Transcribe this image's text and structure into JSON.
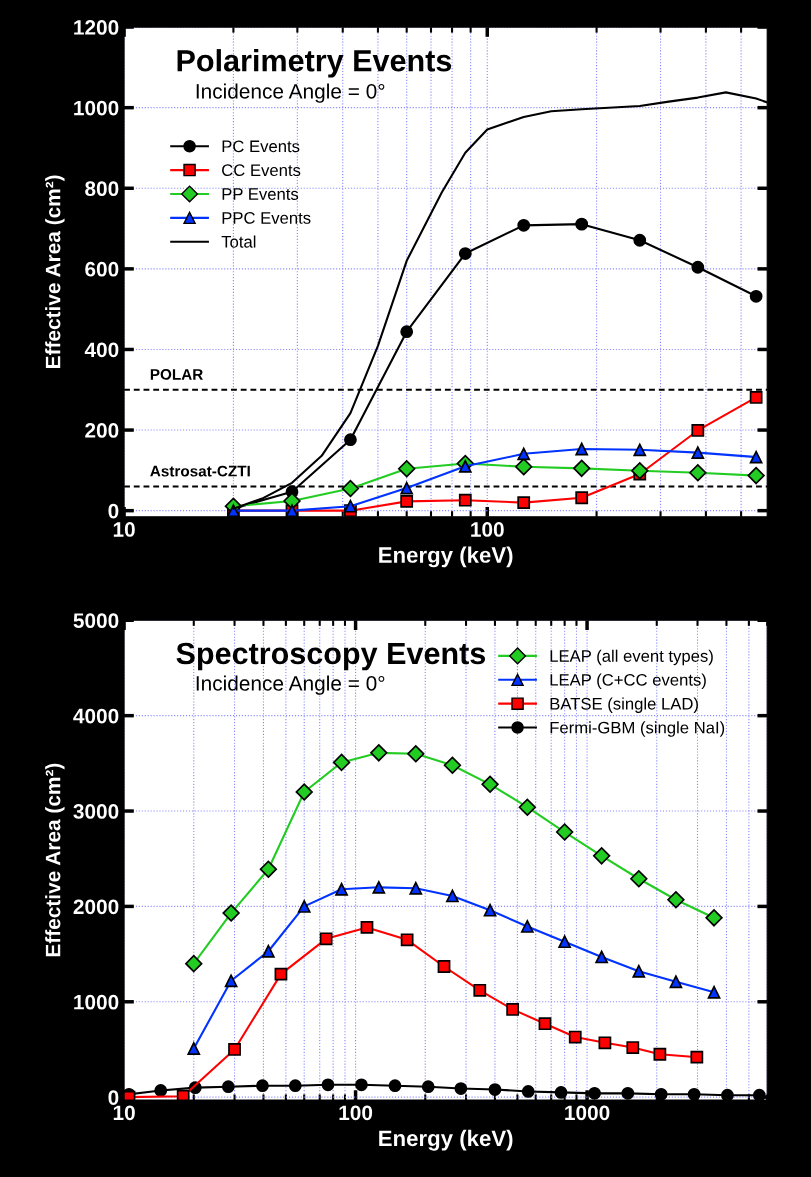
{
  "chart_data": [
    {
      "type": "line",
      "title": "Polarimetry Events",
      "subtitle": "Incidence Angle = 0°",
      "xlabel": "Energy (keV)",
      "ylabel": "Effective Area (cm²)",
      "log": "x",
      "xlim": [
        10,
        590
      ],
      "xticks": [
        10,
        100
      ],
      "ylim": [
        -15,
        1200
      ],
      "yticks": [
        0,
        200,
        400,
        600,
        800,
        1000,
        1200
      ],
      "grid": true,
      "legend": "top left",
      "series": [
        {
          "name": "PC Events",
          "color": "#000000",
          "marker": "circle",
          "x": [
            20,
            29,
            42,
            60,
            87,
            126,
            182,
            263,
            380,
            550
          ],
          "values": [
            5,
            47,
            176,
            444,
            638,
            708,
            711,
            671,
            604,
            532
          ]
        },
        {
          "name": "CC Events",
          "color": "#ff0000",
          "marker": "square",
          "x": [
            20,
            29,
            42,
            60,
            87,
            126,
            182,
            263,
            380,
            550
          ],
          "values": [
            0,
            0,
            0,
            23,
            26,
            20,
            32,
            91,
            199,
            281
          ]
        },
        {
          "name": "PP Events",
          "color": "#22cc22",
          "marker": "diamond",
          "x": [
            20,
            29,
            42,
            60,
            87,
            126,
            182,
            263,
            380,
            550
          ],
          "values": [
            11,
            24,
            55,
            104,
            117,
            109,
            105,
            99,
            94,
            87
          ]
        },
        {
          "name": "PPC Events",
          "color": "#0033ff",
          "marker": "triangle",
          "x": [
            20,
            29,
            42,
            60,
            87,
            126,
            182,
            263,
            380,
            550
          ],
          "values": [
            0,
            0,
            11,
            56,
            110,
            141,
            153,
            151,
            144,
            133
          ]
        },
        {
          "name": "Total",
          "color": "#000000",
          "marker": "none",
          "x": [
            20,
            24,
            29,
            35,
            42,
            50,
            60,
            75,
            87,
            100,
            126,
            150,
            182,
            263,
            316,
            380,
            454,
            550,
            590
          ],
          "values": [
            5,
            30,
            69,
            136,
            242,
            409,
            620,
            790,
            888,
            946,
            977,
            991,
            996,
            1004,
            1015,
            1025,
            1038,
            1023,
            1013
          ]
        }
      ],
      "ref_lines": [
        {
          "axis": "y",
          "value": 300,
          "label": "POLAR",
          "line_style": "dashed",
          "color": "#000000"
        },
        {
          "axis": "y",
          "value": 60,
          "label": "Astrosat-CZTI",
          "line_style": "dashed",
          "color": "#000000"
        }
      ]
    },
    {
      "type": "line",
      "title": "Spectroscopy Events",
      "subtitle": "Incidence Angle = 0°",
      "xlabel": "Energy (keV)",
      "ylabel": "Effective Area (cm²)",
      "log": "x",
      "xlim": [
        10,
        6000
      ],
      "xticks": [
        10,
        100,
        1000
      ],
      "ylim": [
        -30,
        5000
      ],
      "yticks": [
        0,
        1000,
        2000,
        3000,
        4000,
        5000
      ],
      "grid": true,
      "legend": "top right",
      "series": [
        {
          "name": "LEAP (all event types)",
          "color": "#22cc22",
          "marker": "diamond",
          "x": [
            20,
            29,
            42,
            60,
            87,
            126,
            182,
            262,
            381,
            552,
            800,
            1156,
            1673,
            2420,
            3536
          ],
          "values": [
            1400,
            1930,
            2390,
            3200,
            3510,
            3610,
            3600,
            3480,
            3280,
            3040,
            2780,
            2530,
            2290,
            2070,
            1880
          ]
        },
        {
          "name": "LEAP (C+CC events)",
          "color": "#0033ff",
          "marker": "triangle",
          "x": [
            20,
            29,
            42,
            60,
            87,
            126,
            182,
            262,
            381,
            552,
            800,
            1156,
            1673,
            2420,
            3536
          ],
          "values": [
            510,
            1220,
            1530,
            2000,
            2180,
            2200,
            2190,
            2110,
            1960,
            1790,
            1630,
            1470,
            1320,
            1210,
            1100
          ]
        },
        {
          "name": "BATSE (single LAD)",
          "color": "#ff0000",
          "marker": "square",
          "x": [
            10.5,
            18,
            30,
            47.6,
            74.6,
            112,
            167,
            241,
            344,
            477,
            658,
            889,
            1194,
            1576,
            2063,
            2980
          ],
          "values": [
            0,
            10,
            500,
            1290,
            1660,
            1780,
            1650,
            1370,
            1120,
            920,
            770,
            630,
            570,
            520,
            450,
            420
          ]
        },
        {
          "name": "Fermi-GBM (single NaI)",
          "color": "#000000",
          "marker": "circle",
          "x": [
            10.5,
            14.4,
            20.3,
            28.2,
            39.6,
            54.9,
            76,
            106,
            148,
            206,
            285,
            400,
            557,
            772,
            1077,
            1500,
            2090,
            2900,
            4040,
            5550
          ],
          "values": [
            30,
            70,
            100,
            110,
            120,
            120,
            130,
            130,
            120,
            110,
            90,
            80,
            60,
            50,
            40,
            40,
            30,
            30,
            20,
            20
          ]
        }
      ]
    }
  ]
}
